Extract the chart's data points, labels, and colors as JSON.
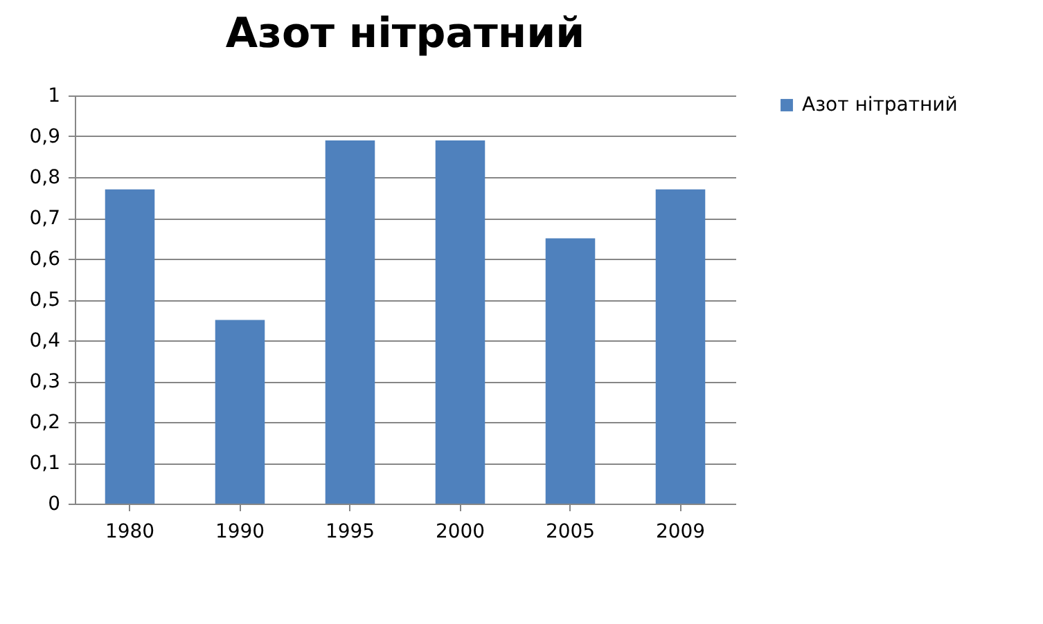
{
  "chart_data": {
    "type": "bar",
    "title": "Азот нітратний",
    "categories": [
      "1980",
      "1990",
      "1995",
      "2000",
      "2005",
      "2009"
    ],
    "series": [
      {
        "name": "Азот нітратний",
        "color": "#4f81bd",
        "values": [
          0.77,
          0.45,
          0.89,
          0.89,
          0.65,
          0.77
        ]
      }
    ],
    "ylim": [
      0,
      1
    ],
    "yticks": [
      {
        "value": 0,
        "label": "0"
      },
      {
        "value": 0.1,
        "label": "0,1"
      },
      {
        "value": 0.2,
        "label": "0,2"
      },
      {
        "value": 0.3,
        "label": "0,3"
      },
      {
        "value": 0.4,
        "label": "0,4"
      },
      {
        "value": 0.5,
        "label": "0,5"
      },
      {
        "value": 0.6,
        "label": "0,6"
      },
      {
        "value": 0.7,
        "label": "0,7"
      },
      {
        "value": 0.8,
        "label": "0,8"
      },
      {
        "value": 0.9,
        "label": "0,9"
      },
      {
        "value": 1,
        "label": "1"
      }
    ],
    "grid": "y",
    "legend": "right"
  }
}
